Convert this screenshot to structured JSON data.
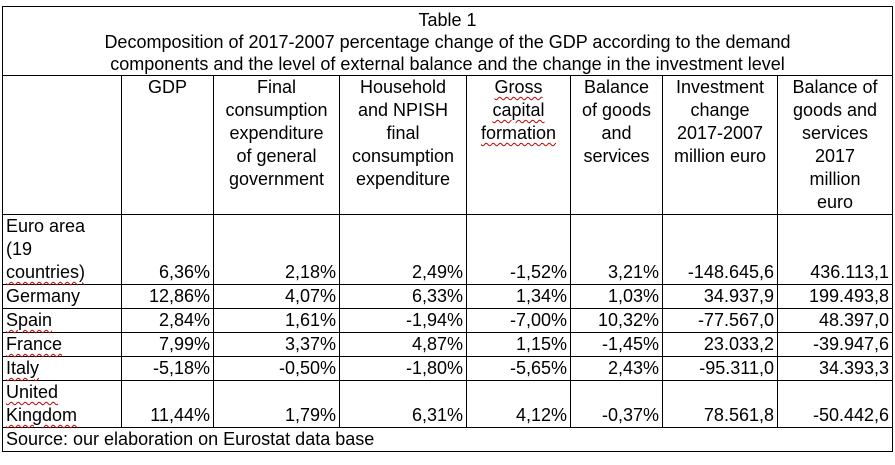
{
  "table": {
    "title": "Table 1",
    "subtitle_line1": "Decomposition of 2017-2007 percentage change of the GDP according to the demand",
    "subtitle_line2": "components and the level of external balance and the change in the investment level",
    "headers": [
      [
        "GDP"
      ],
      [
        "Final",
        "consumption",
        "expenditure",
        "of general",
        "government"
      ],
      [
        "Household",
        "and NPISH",
        "final",
        "consumption",
        "expenditure"
      ],
      [
        "Gross",
        "capital",
        "formation"
      ],
      [
        "Balance",
        "of goods",
        "and",
        "services"
      ],
      [
        "Investment",
        "change",
        "2017-2007",
        "million euro"
      ],
      [
        "Balance of",
        "goods and",
        "services",
        "2017",
        "million",
        "euro"
      ]
    ],
    "rows": [
      {
        "country": [
          "Euro area",
          "(19",
          "countries)"
        ],
        "values": [
          "6,36%",
          "2,18%",
          "2,49%",
          "-1,52%",
          "3,21%",
          "-148.645,6",
          "436.113,1"
        ]
      },
      {
        "country": [
          "Germany"
        ],
        "values": [
          "12,86%",
          "4,07%",
          "6,33%",
          "1,34%",
          "1,03%",
          "34.937,9",
          "199.493,8"
        ]
      },
      {
        "country": [
          "Spain"
        ],
        "values": [
          "2,84%",
          "1,61%",
          "-1,94%",
          "-7,00%",
          "10,32%",
          "-77.567,0",
          "48.397,0"
        ]
      },
      {
        "country": [
          "France"
        ],
        "values": [
          "7,99%",
          "3,37%",
          "4,87%",
          "1,15%",
          "-1,45%",
          "23.033,2",
          "-39.947,6"
        ]
      },
      {
        "country": [
          "Italy"
        ],
        "values": [
          "-5,18%",
          "-0,50%",
          "-1,80%",
          "-5,65%",
          "2,43%",
          "-95.311,0",
          "34.393,3"
        ]
      },
      {
        "country": [
          "United",
          "Kingdom"
        ],
        "values": [
          "11,44%",
          "1,79%",
          "6,31%",
          "4,12%",
          "-0,37%",
          "78.561,8",
          "-50.442,6"
        ]
      }
    ],
    "source": "Source: our elaboration on Eurostat data base"
  }
}
